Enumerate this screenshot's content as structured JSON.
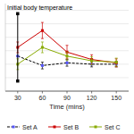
{
  "chart_data": {
    "type": "line",
    "title": "Initial body temperature",
    "x_label": "Time (mins)",
    "x": [
      30,
      60,
      90,
      120,
      150
    ],
    "series": [
      {
        "name": "Set A",
        "color": "#000000",
        "colors": [
          "#5555ff",
          "#5555ff",
          "#5555ff",
          "#5555ff",
          "#5555ff"
        ],
        "line_style": "dashed",
        "marker": "square",
        "values": [
          36.72,
          36.58,
          36.62,
          36.6,
          36.6
        ],
        "errors": [
          0.0,
          0.05,
          0.05,
          0.04,
          0.04
        ]
      },
      {
        "name": "Set B",
        "color": "#cc0000",
        "line_style": "solid",
        "marker": "square",
        "values": [
          36.85,
          37.1,
          36.78,
          36.67,
          36.62
        ],
        "errors": [
          0.08,
          0.12,
          0.1,
          0.07,
          0.06
        ]
      },
      {
        "name": "Set C",
        "color": "#88aa00",
        "line_style": "solid",
        "marker": "square",
        "values": [
          36.6,
          36.85,
          36.72,
          36.65,
          36.63
        ],
        "errors": [
          0.08,
          0.08,
          0.06,
          0.06,
          0.06
        ]
      }
    ],
    "reference_line": {
      "x": 30,
      "y_bottom": 36.35,
      "y_top": 37.35
    },
    "xlim": [
      15,
      165
    ],
    "xticks": [
      30,
      60,
      90,
      120,
      150
    ],
    "ylim": [
      36.2,
      37.5
    ],
    "yticks": [
      36.2,
      36.4,
      36.6,
      36.8,
      37.0,
      37.2,
      37.4
    ],
    "grid": true,
    "tick_labels": "x",
    "legend": "bottom"
  }
}
